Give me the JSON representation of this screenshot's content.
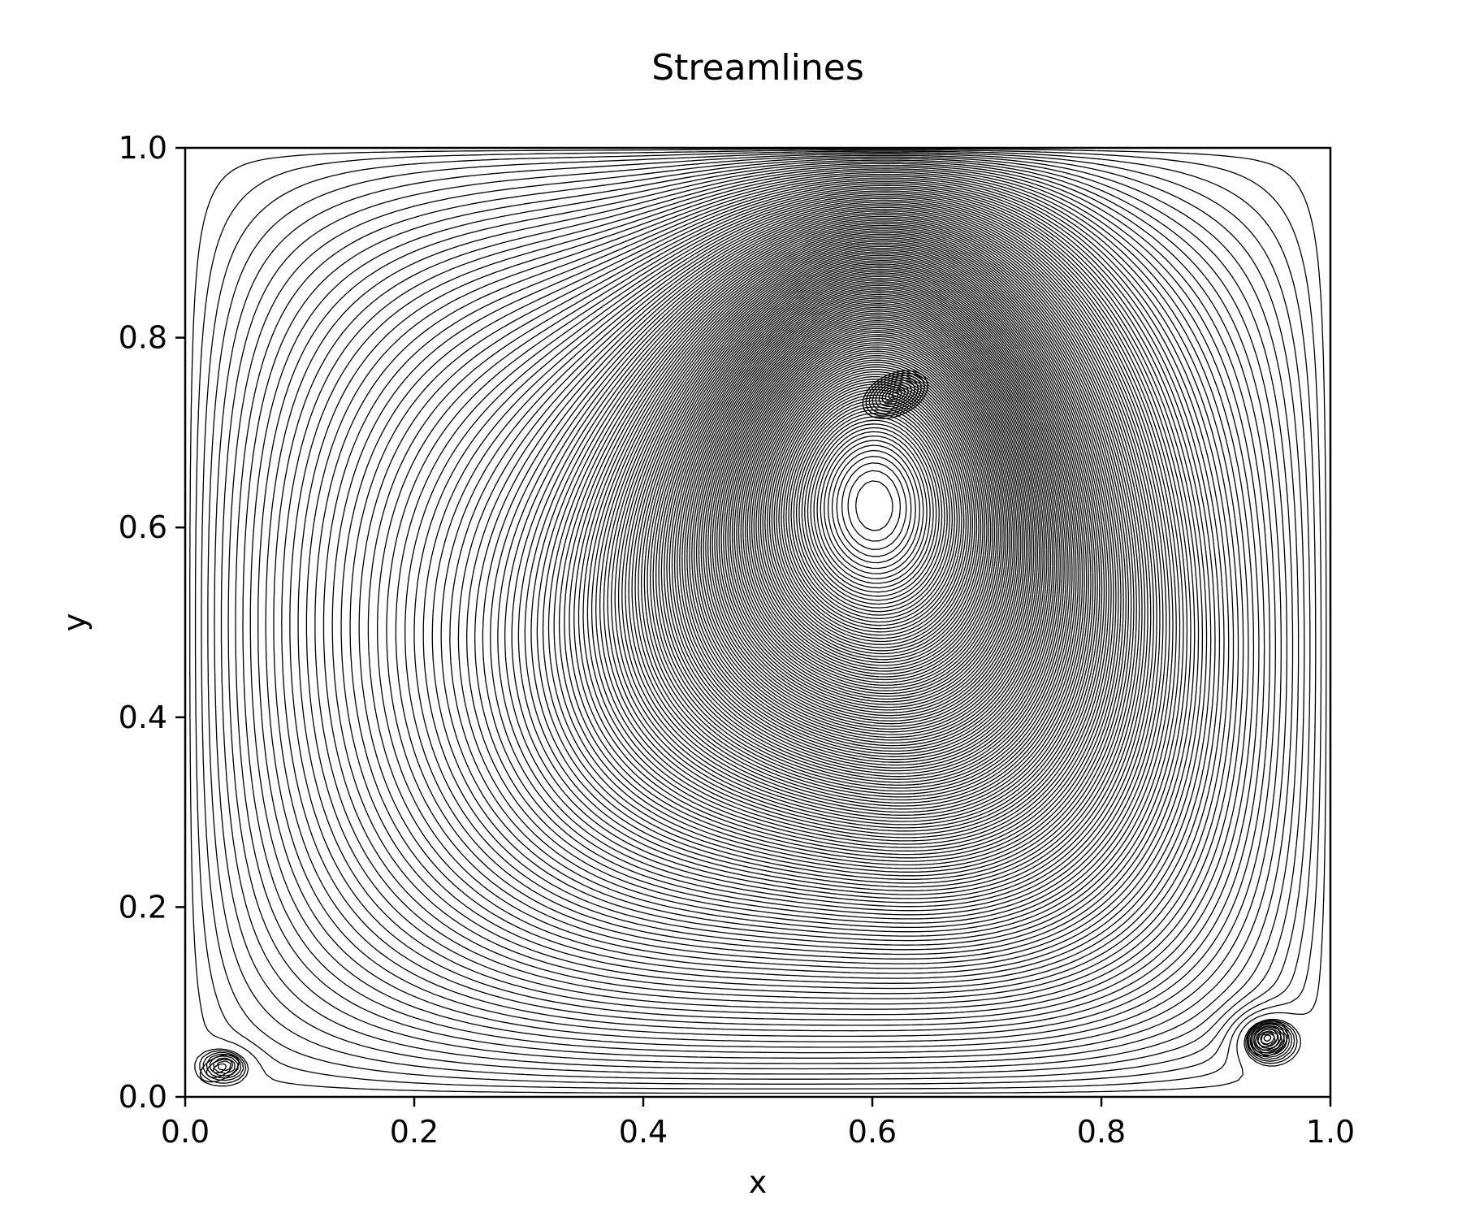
{
  "chart_data": {
    "type": "streamplot",
    "title": "Streamlines",
    "xlabel": "x",
    "ylabel": "y",
    "xlim": [
      0.0,
      1.0
    ],
    "ylim": [
      0.0,
      1.0
    ],
    "xticks": [
      "0.0",
      "0.2",
      "0.4",
      "0.6",
      "0.8",
      "1.0"
    ],
    "yticks": [
      "0.0",
      "0.2",
      "0.4",
      "0.6",
      "0.8",
      "1.0"
    ],
    "grid": false,
    "line_color": "#000000",
    "vortices": [
      {
        "name": "primary",
        "x": 0.62,
        "y": 0.74
      },
      {
        "name": "bottom-right secondary",
        "x": 0.945,
        "y": 0.062
      },
      {
        "name": "bottom-left secondary",
        "x": 0.03,
        "y": 0.03
      }
    ]
  }
}
